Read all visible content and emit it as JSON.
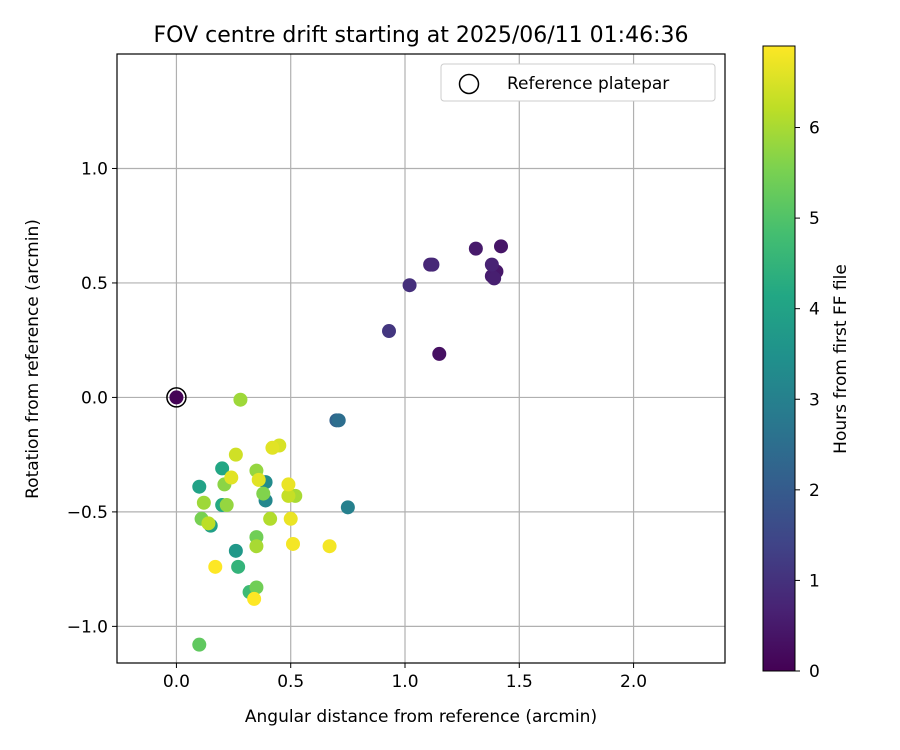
{
  "chart_data": {
    "type": "scatter",
    "title": "FOV centre drift starting at 2025/06/11 01:46:36",
    "xlabel": "Angular distance from reference (arcmin)",
    "ylabel": "Rotation from reference (arcmin)",
    "xlim": [
      -0.26,
      2.4
    ],
    "ylim": [
      -1.16,
      1.5
    ],
    "xticks": [
      0.0,
      0.5,
      1.0,
      1.5,
      2.0
    ],
    "xtick_labels": [
      "0.0",
      "0.5",
      "1.0",
      "1.5",
      "2.0"
    ],
    "yticks": [
      -1.0,
      -0.5,
      0.0,
      0.5,
      1.0
    ],
    "ytick_labels": [
      "−1.0",
      "−0.5",
      "0.0",
      "0.5",
      "1.0"
    ],
    "grid": true,
    "legend": {
      "placement": "top-right",
      "entries": [
        "Reference platepar"
      ]
    },
    "reference_point": {
      "x": 0.0,
      "y": 0.0,
      "label": "Reference platepar"
    },
    "colorbar": {
      "label": "Hours from first FF file",
      "range": [
        0,
        6.9
      ],
      "ticks": [
        0,
        1,
        2,
        3,
        4,
        5,
        6
      ],
      "tick_labels": [
        "0",
        "1",
        "2",
        "3",
        "4",
        "5",
        "6"
      ],
      "colormap": "viridis"
    },
    "series": [
      {
        "points": [
          {
            "x": 0.0,
            "y": 0.0,
            "t": 0.05
          },
          {
            "x": 1.15,
            "y": 0.19,
            "t": 0.3
          },
          {
            "x": 1.42,
            "y": 0.66,
            "t": 0.4
          },
          {
            "x": 1.31,
            "y": 0.65,
            "t": 0.5
          },
          {
            "x": 1.4,
            "y": 0.55,
            "t": 0.45
          },
          {
            "x": 1.38,
            "y": 0.53,
            "t": 0.55
          },
          {
            "x": 1.39,
            "y": 0.52,
            "t": 0.6
          },
          {
            "x": 1.38,
            "y": 0.58,
            "t": 0.7
          },
          {
            "x": 1.11,
            "y": 0.58,
            "t": 0.75
          },
          {
            "x": 1.12,
            "y": 0.58,
            "t": 0.8
          },
          {
            "x": 1.02,
            "y": 0.49,
            "t": 0.95
          },
          {
            "x": 0.93,
            "y": 0.29,
            "t": 1.1
          },
          {
            "x": 0.7,
            "y": -0.1,
            "t": 2.2
          },
          {
            "x": 0.71,
            "y": -0.1,
            "t": 2.5
          },
          {
            "x": 0.75,
            "y": -0.48,
            "t": 3.0
          },
          {
            "x": 0.39,
            "y": -0.45,
            "t": 3.2
          },
          {
            "x": 0.39,
            "y": -0.37,
            "t": 3.3
          },
          {
            "x": 0.26,
            "y": -0.67,
            "t": 3.7
          },
          {
            "x": 0.15,
            "y": -0.56,
            "t": 3.9
          },
          {
            "x": 0.1,
            "y": -0.39,
            "t": 4.0
          },
          {
            "x": 0.2,
            "y": -0.31,
            "t": 4.1
          },
          {
            "x": 0.2,
            "y": -0.47,
            "t": 4.2
          },
          {
            "x": 0.27,
            "y": -0.74,
            "t": 4.5
          },
          {
            "x": 0.32,
            "y": -0.85,
            "t": 4.7
          },
          {
            "x": 0.1,
            "y": -1.08,
            "t": 5.2
          },
          {
            "x": 0.35,
            "y": -0.83,
            "t": 5.4
          },
          {
            "x": 0.11,
            "y": -0.53,
            "t": 5.5
          },
          {
            "x": 0.35,
            "y": -0.61,
            "t": 5.4
          },
          {
            "x": 0.38,
            "y": -0.42,
            "t": 5.6
          },
          {
            "x": 0.21,
            "y": -0.38,
            "t": 5.7
          },
          {
            "x": 0.35,
            "y": -0.32,
            "t": 5.8
          },
          {
            "x": 0.12,
            "y": -0.46,
            "t": 5.9
          },
          {
            "x": 0.22,
            "y": -0.47,
            "t": 5.8
          },
          {
            "x": 0.28,
            "y": -0.01,
            "t": 5.9
          },
          {
            "x": 0.35,
            "y": -0.65,
            "t": 6.0
          },
          {
            "x": 0.41,
            "y": -0.53,
            "t": 6.1
          },
          {
            "x": 0.52,
            "y": -0.43,
            "t": 6.0
          },
          {
            "x": 0.26,
            "y": -0.25,
            "t": 6.4
          },
          {
            "x": 0.14,
            "y": -0.55,
            "t": 6.2
          },
          {
            "x": 0.49,
            "y": -0.43,
            "t": 6.3
          },
          {
            "x": 0.45,
            "y": -0.21,
            "t": 6.5
          },
          {
            "x": 0.42,
            "y": -0.22,
            "t": 6.6
          },
          {
            "x": 0.36,
            "y": -0.36,
            "t": 6.6
          },
          {
            "x": 0.24,
            "y": -0.35,
            "t": 6.6
          },
          {
            "x": 0.49,
            "y": -0.38,
            "t": 6.7
          },
          {
            "x": 0.5,
            "y": -0.53,
            "t": 6.7
          },
          {
            "x": 0.51,
            "y": -0.64,
            "t": 6.8
          },
          {
            "x": 0.67,
            "y": -0.65,
            "t": 6.8
          },
          {
            "x": 0.17,
            "y": -0.74,
            "t": 6.9
          },
          {
            "x": 0.34,
            "y": -0.88,
            "t": 6.9
          }
        ]
      }
    ]
  }
}
